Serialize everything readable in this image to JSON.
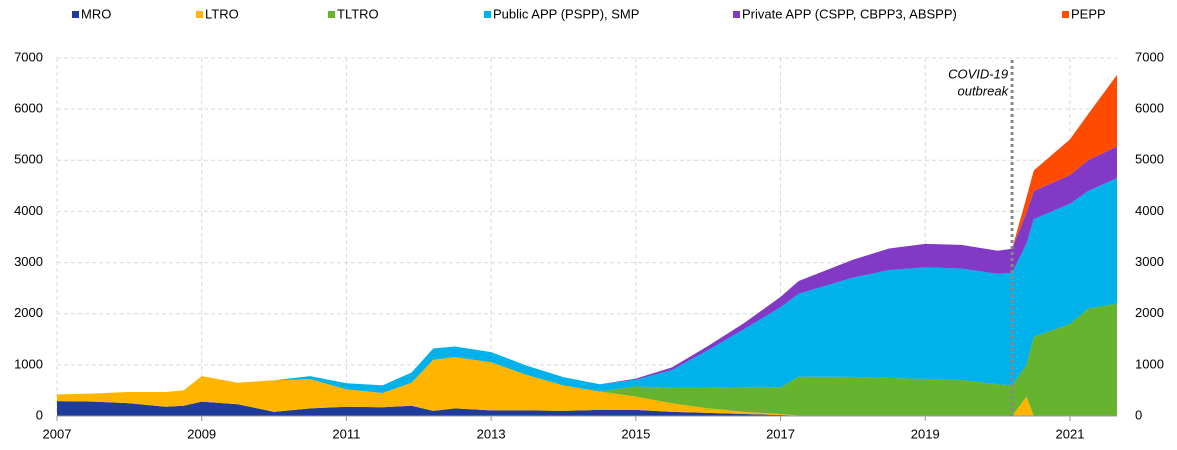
{
  "chart_data": {
    "type": "stacked_area",
    "x": [
      2007,
      2007.5,
      2008,
      2008.5,
      2008.75,
      2009,
      2009.5,
      2010,
      2010.5,
      2011,
      2011.5,
      2011.9,
      2012.2,
      2012.5,
      2013,
      2013.5,
      2014,
      2014.5,
      2015,
      2015.5,
      2016,
      2016.5,
      2017,
      2017.25,
      2018,
      2018.5,
      2019,
      2019.5,
      2020,
      2020.2,
      2020.4,
      2020.5,
      2021,
      2021.25,
      2021.65
    ],
    "series": [
      {
        "name": "MRO",
        "color": "#1f3c99",
        "values": [
          290,
          280,
          250,
          180,
          200,
          280,
          230,
          80,
          150,
          180,
          170,
          200,
          100,
          150,
          110,
          110,
          100,
          120,
          120,
          80,
          60,
          40,
          20,
          10,
          5,
          5,
          5,
          5,
          0,
          0,
          0,
          0,
          0,
          0,
          0
        ]
      },
      {
        "name": "LTRO",
        "color": "#ffb400",
        "values": [
          130,
          160,
          220,
          290,
          300,
          500,
          420,
          620,
          570,
          340,
          280,
          450,
          1000,
          1000,
          940,
          690,
          500,
          360,
          260,
          170,
          90,
          40,
          20,
          0,
          0,
          0,
          0,
          0,
          0,
          0,
          380,
          0,
          0,
          0,
          0
        ]
      },
      {
        "name": "TLTRO",
        "color": "#65b32e",
        "values": [
          0,
          0,
          0,
          0,
          0,
          0,
          0,
          0,
          0,
          0,
          0,
          0,
          0,
          0,
          0,
          0,
          0,
          0,
          200,
          300,
          400,
          480,
          520,
          760,
          760,
          740,
          720,
          700,
          620,
          600,
          620,
          1550,
          1800,
          2100,
          2200
        ]
      },
      {
        "name": "Public APP (PSPP), SMP",
        "color": "#00b1ea",
        "values": [
          0,
          0,
          0,
          0,
          0,
          0,
          0,
          0,
          60,
          120,
          150,
          200,
          220,
          210,
          200,
          180,
          160,
          140,
          130,
          350,
          740,
          1140,
          1570,
          1620,
          1940,
          2110,
          2180,
          2180,
          2160,
          2200,
          2380,
          2300,
          2350,
          2300,
          2450
        ]
      },
      {
        "name": "Private APP (CSPP, CBPP3, ABSPP)",
        "color": "#8139c6",
        "values": [
          0,
          0,
          0,
          0,
          0,
          0,
          0,
          0,
          0,
          0,
          0,
          0,
          0,
          0,
          0,
          0,
          0,
          0,
          20,
          50,
          80,
          120,
          200,
          250,
          350,
          420,
          460,
          460,
          450,
          470,
          600,
          550,
          560,
          600,
          620
        ]
      },
      {
        "name": "PEPP",
        "color": "#ff4b00",
        "values": [
          0,
          0,
          0,
          0,
          0,
          0,
          0,
          0,
          0,
          0,
          0,
          0,
          0,
          0,
          0,
          0,
          0,
          0,
          0,
          0,
          0,
          0,
          0,
          0,
          0,
          0,
          0,
          0,
          0,
          0,
          300,
          400,
          700,
          900,
          1400
        ]
      }
    ],
    "xlim": [
      2007,
      2021.65
    ],
    "xticks": [
      2007,
      2009,
      2011,
      2013,
      2015,
      2017,
      2019,
      2021
    ],
    "ylim": [
      0,
      7000
    ],
    "yticks": [
      0,
      1000,
      2000,
      3000,
      4000,
      5000,
      6000,
      7000
    ],
    "y2lim": [
      0,
      7000
    ],
    "y2ticks": [
      0,
      1000,
      2000,
      3000,
      4000,
      5000,
      6000,
      7000
    ],
    "grid": true,
    "legend": "top",
    "annotation": {
      "lines": [
        "COVID-19",
        "outbreak"
      ],
      "x": 2020.2
    }
  }
}
